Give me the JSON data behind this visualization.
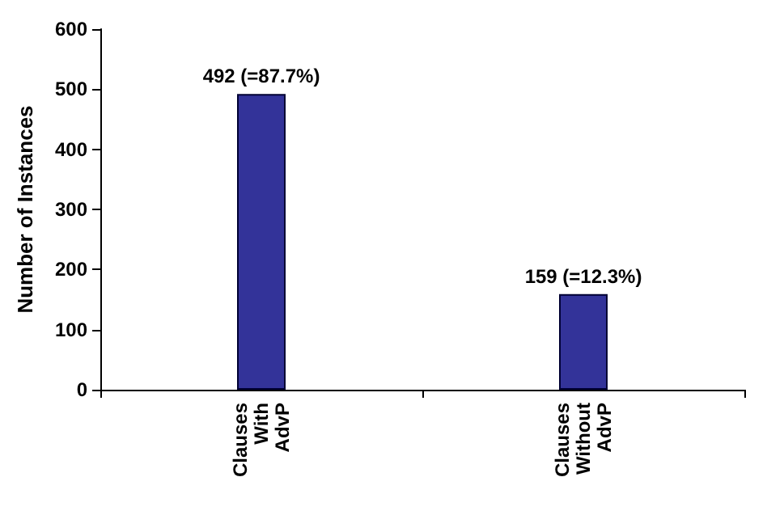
{
  "chart_data": {
    "type": "bar",
    "ylabel": "Number of Instances",
    "categories": [
      "Clauses With AdvP",
      "Clauses Without AdvP"
    ],
    "values": [
      492,
      159
    ],
    "color": "#333399",
    "value_labels": [
      "492 (=87.7%)",
      "159 (=12.3%)"
    ],
    "ylim": [
      0,
      600
    ],
    "yticks": [
      0,
      100,
      200,
      300,
      400,
      500,
      600
    ],
    "grid": false
  }
}
